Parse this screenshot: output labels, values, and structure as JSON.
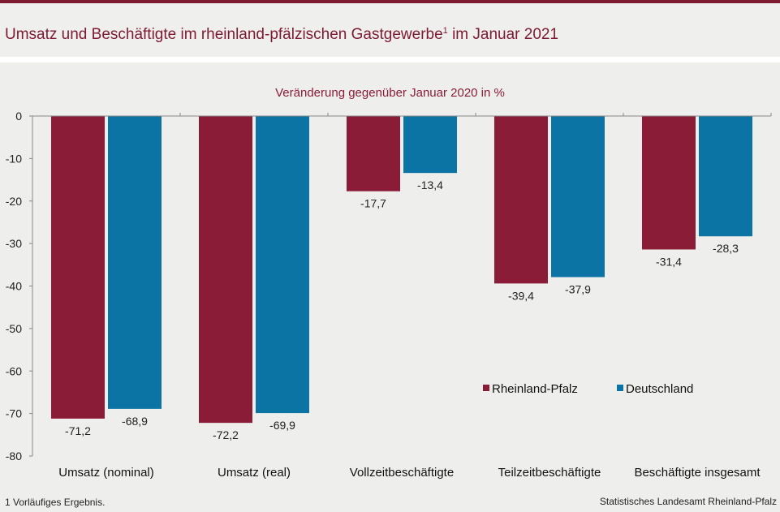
{
  "header": {
    "title": "Umsatz und Beschäftigte im rheinland-pfälzischen Gastgewerbe",
    "title_sup": "1",
    "title_tail": " im Januar 2021"
  },
  "chart_data": {
    "type": "bar",
    "subtitle": "Veränderung gegenüber Januar 2020 in %",
    "categories": [
      "Umsatz (nominal)",
      "Umsatz (real)",
      "Vollzeitbeschäftigte",
      "Teilzeitbeschäftigte",
      "Beschäftigte insgesamt"
    ],
    "series": [
      {
        "name": "Rheinland-Pfalz",
        "color": "#8b1c37",
        "values": [
          -71.2,
          -72.2,
          -17.7,
          -39.4,
          -31.4
        ],
        "labels": [
          "-71,2",
          "-72,2",
          "-17,7",
          "-39,4",
          "-31,4"
        ]
      },
      {
        "name": "Deutschland",
        "color": "#0b74a4",
        "values": [
          -68.9,
          -69.9,
          -13.4,
          -37.9,
          -28.3
        ],
        "labels": [
          "-68,9",
          "-69,9",
          "-13,4",
          "-37,9",
          "-28,3"
        ]
      }
    ],
    "ylim": [
      -80,
      0
    ],
    "yticks": [
      0,
      -10,
      -20,
      -30,
      -40,
      -50,
      -60,
      -70,
      -80
    ],
    "ytick_labels": [
      "0",
      "-10",
      "-20",
      "-30",
      "-40",
      "-50",
      "-60",
      "-70",
      "-80"
    ],
    "grid": false,
    "legend": "inside-lower-right"
  },
  "footer": {
    "footnote": "1 Vorläufiges  Ergebnis.",
    "source": "Statistisches Landesamt Rheinland-Pfalz"
  }
}
